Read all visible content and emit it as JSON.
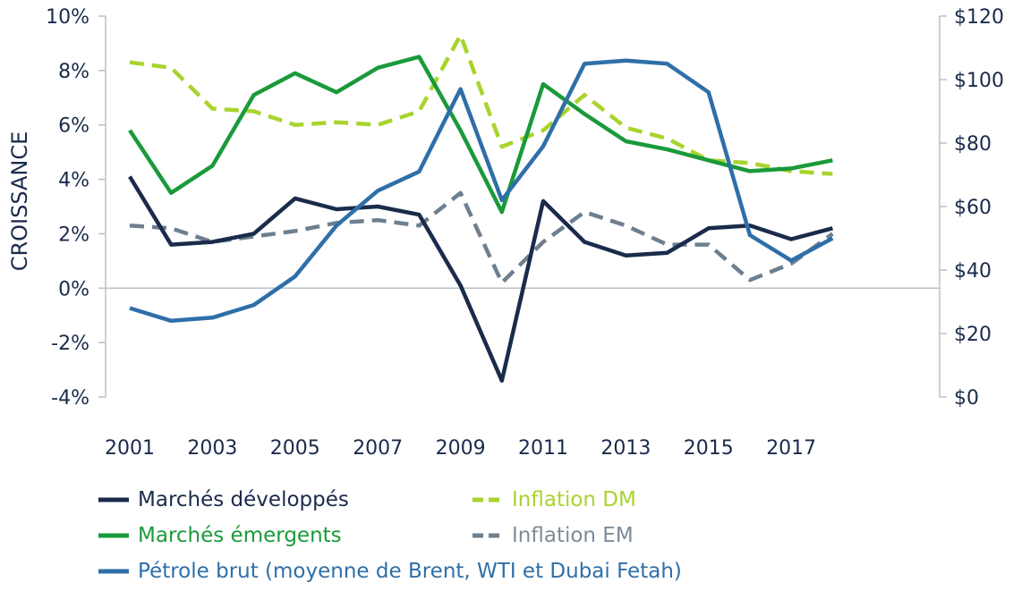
{
  "chart_data": {
    "type": "line",
    "ylabel": "CROISSANCE",
    "ylim_left": [
      -4,
      10
    ],
    "ylim_right": [
      0,
      120
    ],
    "left_ticks": [
      "10%",
      "8%",
      "6%",
      "4%",
      "2%",
      "0%",
      "-2%",
      "-4%"
    ],
    "right_ticks": [
      "$120",
      "$100",
      "$80",
      "$60",
      "$40",
      "$20",
      "$0"
    ],
    "x_ticks": [
      "2001",
      "2003",
      "2005",
      "2007",
      "2009",
      "2011",
      "2013",
      "2015",
      "2017"
    ],
    "x": [
      2001,
      2002,
      2003,
      2004,
      2005,
      2006,
      2007,
      2008,
      2009,
      2010,
      2011,
      2012,
      2013,
      2014,
      2015,
      2016,
      2017,
      2018
    ],
    "grid": false,
    "legend_position": "bottom",
    "series": [
      {
        "name": "Marchés développés",
        "axis": "left",
        "style": "solid",
        "color": "#1a2b4c",
        "values": [
          4.1,
          1.6,
          1.7,
          2.0,
          3.3,
          2.9,
          3.0,
          2.7,
          0.1,
          -3.4,
          3.2,
          1.7,
          1.2,
          1.3,
          2.2,
          2.3,
          1.8,
          2.2
        ]
      },
      {
        "name": "Marchés émergents",
        "axis": "left",
        "style": "solid",
        "color": "#1a9a3a",
        "values": [
          5.8,
          3.5,
          4.5,
          7.1,
          7.9,
          7.2,
          8.1,
          8.5,
          5.8,
          2.8,
          7.5,
          6.4,
          5.4,
          5.1,
          4.7,
          4.3,
          4.4,
          4.7
        ]
      },
      {
        "name": "Pétrole brut (moyenne de Brent, WTI et Dubai Fetah)",
        "axis": "right",
        "style": "solid",
        "color": "#2f6fa8",
        "values": [
          28.0,
          24.0,
          25.0,
          29.0,
          38.0,
          54.0,
          65.0,
          71.0,
          97.0,
          62.0,
          79.0,
          105.0,
          106.0,
          105.0,
          96.0,
          51.0,
          43.0,
          50.0
        ]
      },
      {
        "name": "Inflation DM",
        "axis": "left",
        "style": "dashed",
        "color": "#a8d42d",
        "values": [
          8.3,
          8.1,
          6.6,
          6.5,
          6.0,
          6.1,
          6.0,
          6.5,
          9.3,
          5.2,
          5.8,
          7.1,
          5.9,
          5.5,
          4.7,
          4.6,
          4.3,
          4.2
        ]
      },
      {
        "name": "Inflation EM",
        "axis": "left",
        "style": "dashed",
        "color": "#6e7f8f",
        "values": [
          2.3,
          2.2,
          1.7,
          1.9,
          2.1,
          2.4,
          2.5,
          2.3,
          3.5,
          0.2,
          1.7,
          2.8,
          2.3,
          1.6,
          1.6,
          0.3,
          0.9,
          2.0
        ]
      }
    ]
  }
}
